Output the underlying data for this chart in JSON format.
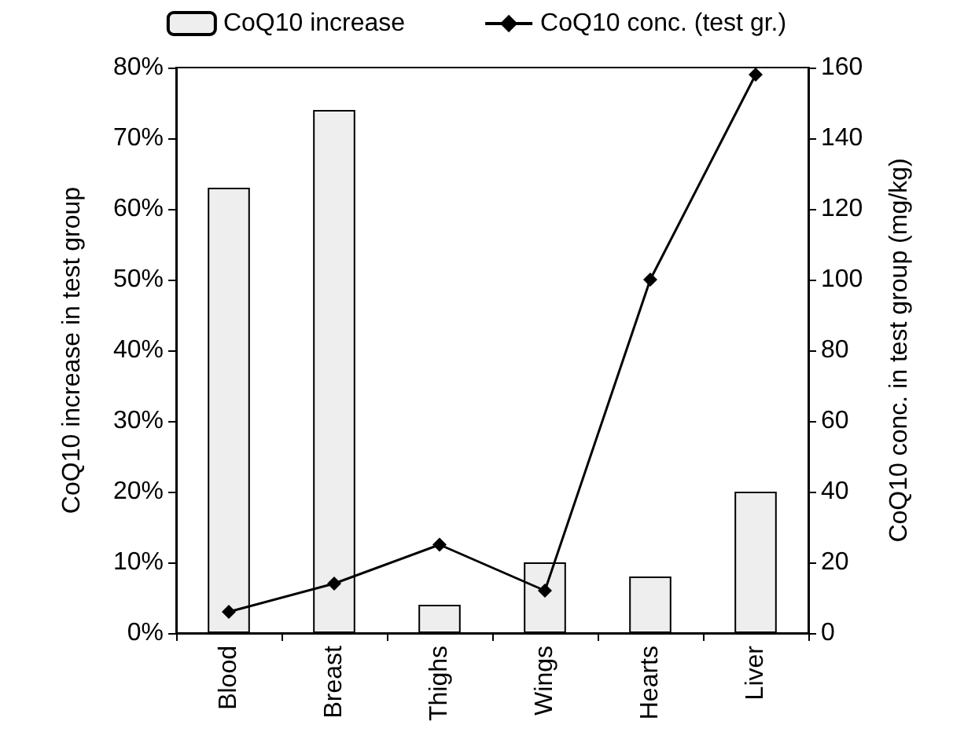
{
  "chart_data": {
    "type": "bar",
    "categories": [
      "Blood",
      "Breast",
      "Thighs",
      "Wings",
      "Hearts",
      "Liver"
    ],
    "ylabel": "CoQ10 increase in test group",
    "y2label": "CoQ10 conc. in test group (mg/kg)",
    "series": [
      {
        "name": "CoQ10 increase",
        "color": "#eeeeee",
        "values": [
          63,
          74,
          4,
          10,
          8,
          20
        ]
      },
      {
        "name": "CoQ10 conc. (test gr.)",
        "type": "line",
        "axis": "y2",
        "color": "#000000",
        "marker": "diamond",
        "values": [
          6,
          14,
          25,
          12,
          100,
          158
        ]
      }
    ],
    "ylim": [
      0,
      80
    ],
    "yticks": [
      {
        "value": 0,
        "label": "0%"
      },
      {
        "value": 10,
        "label": "10%"
      },
      {
        "value": 20,
        "label": "20%"
      },
      {
        "value": 30,
        "label": "30%"
      },
      {
        "value": 40,
        "label": "40%"
      },
      {
        "value": 50,
        "label": "50%"
      },
      {
        "value": 60,
        "label": "60%"
      },
      {
        "value": 70,
        "label": "70%"
      },
      {
        "value": 80,
        "label": "80%"
      }
    ],
    "y2lim": [
      0,
      160
    ],
    "y2ticks": [
      0,
      20,
      40,
      60,
      80,
      100,
      120,
      140,
      160
    ],
    "grid": false,
    "legend": "top"
  }
}
